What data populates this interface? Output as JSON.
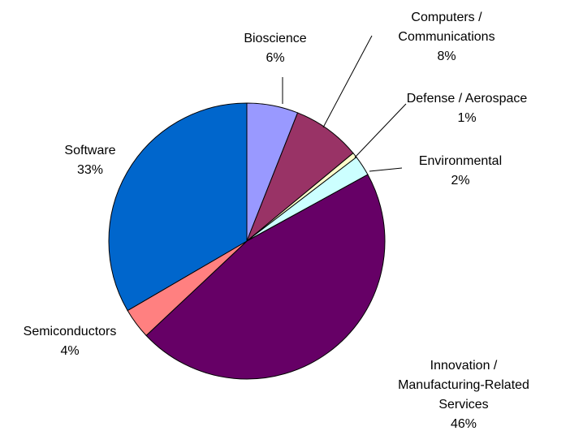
{
  "chart_data": {
    "type": "pie",
    "title": "",
    "slices": [
      {
        "label_lines": [
          "Bioscience"
        ],
        "percent_label": "6%",
        "value": 6,
        "color": "#9999FF"
      },
      {
        "label_lines": [
          "Computers /",
          "Communications"
        ],
        "percent_label": "8%",
        "value": 8,
        "color": "#993366"
      },
      {
        "label_lines": [
          "Defense / Aerospace"
        ],
        "percent_label": "1%",
        "value": 0.6,
        "color": "#FFFFCC"
      },
      {
        "label_lines": [
          "Environmental"
        ],
        "percent_label": "2%",
        "value": 2.4,
        "color": "#CCFFFF"
      },
      {
        "label_lines": [
          "Innovation /",
          "Manufacturing-Related",
          "Services"
        ],
        "percent_label": "46%",
        "value": 46,
        "color": "#660066"
      },
      {
        "label_lines": [
          "Semiconductors"
        ],
        "percent_label": "4%",
        "value": 3.6,
        "color": "#FF8080"
      },
      {
        "label_lines": [
          "Software"
        ],
        "percent_label": "33%",
        "value": 33.4,
        "color": "#0066CC"
      }
    ]
  }
}
